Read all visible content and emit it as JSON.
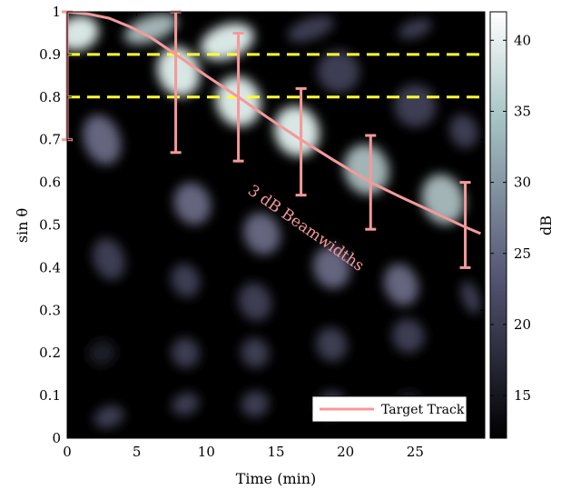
{
  "chart_data": {
    "type": "heatmap",
    "xlabel": "Time (min)",
    "ylabel": "sin θ",
    "xlim": [
      0,
      30
    ],
    "ylim": [
      0,
      1
    ],
    "x_ticks": [
      "0",
      "5",
      "10",
      "15",
      "20",
      "25"
    ],
    "x_tick_values": [
      0,
      5,
      10,
      15,
      20,
      25
    ],
    "y_ticks": [
      "0",
      "0.1",
      "0.2",
      "0.3",
      "0.4",
      "0.5",
      "0.6",
      "0.7",
      "0.8",
      "0.9",
      "1"
    ],
    "y_tick_values": [
      0,
      0.1,
      0.2,
      0.3,
      0.4,
      0.5,
      0.6,
      0.7,
      0.8,
      0.9,
      1
    ],
    "colorbar": {
      "label": "dB",
      "range": [
        12,
        42
      ],
      "ticks": [
        "15",
        "20",
        "25",
        "30",
        "35",
        "40"
      ],
      "tick_values": [
        15,
        20,
        25,
        30,
        35,
        40
      ],
      "colormap": "bone"
    },
    "beams": [
      {
        "time": 0,
        "center": 0.99,
        "beamwidth_low": 0.7,
        "beamwidth_high": 1.0
      },
      {
        "time": 7.8,
        "center": 0.9,
        "beamwidth_low": 0.67,
        "beamwidth_high": 1.0
      },
      {
        "time": 12.3,
        "center": 0.8,
        "beamwidth_low": 0.65,
        "beamwidth_high": 0.95
      },
      {
        "time": 16.8,
        "center": 0.7,
        "beamwidth_low": 0.57,
        "beamwidth_high": 0.82
      },
      {
        "time": 21.8,
        "center": 0.6,
        "beamwidth_low": 0.49,
        "beamwidth_high": 0.71
      },
      {
        "time": 28.6,
        "center": 0.49,
        "beamwidth_low": 0.4,
        "beamwidth_high": 0.6
      }
    ],
    "target_track": {
      "name": "Target Track",
      "color": "#f4999a",
      "x": [
        0,
        1.5,
        3,
        4.5,
        6,
        7.8,
        10,
        12.3,
        14.5,
        16.8,
        19,
        21.8,
        24,
        26,
        28.6,
        29.7
      ],
      "y": [
        1.0,
        0.995,
        0.985,
        0.965,
        0.94,
        0.9,
        0.85,
        0.8,
        0.75,
        0.7,
        0.655,
        0.6,
        0.565,
        0.535,
        0.495,
        0.48
      ]
    },
    "reference_lines": [
      {
        "y": 0.9,
        "color": "#ffff33",
        "style": "dashed"
      },
      {
        "y": 0.8,
        "color": "#ffff33",
        "style": "dashed"
      }
    ],
    "annotation": {
      "text": "3 dB Beamwidths",
      "color": "#f4999a"
    },
    "legend": {
      "entries": [
        "Target Track"
      ],
      "position": "bottom-right"
    }
  }
}
